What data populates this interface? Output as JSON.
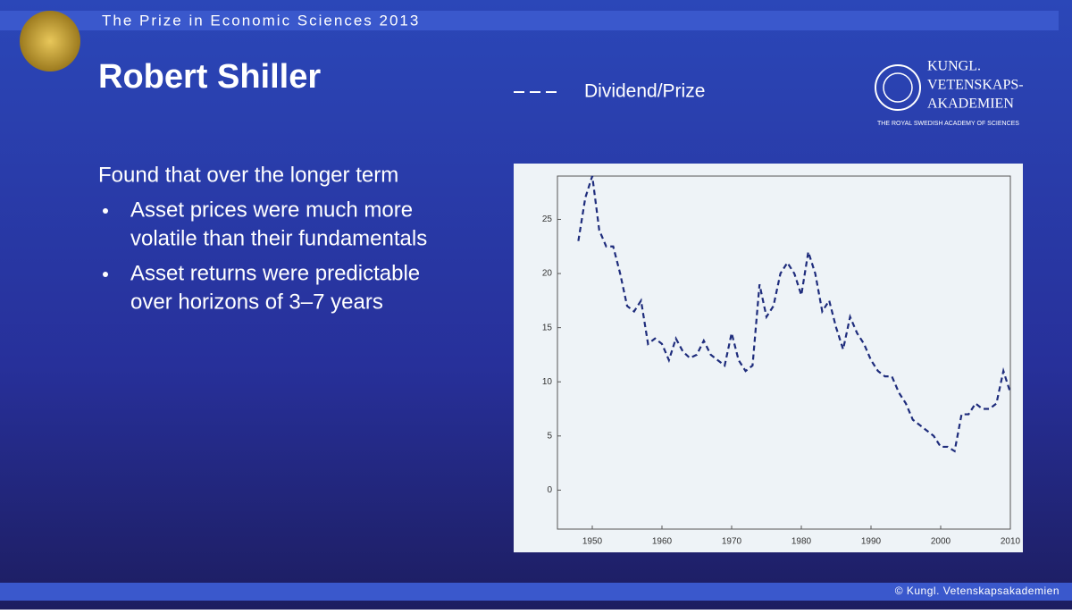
{
  "header": {
    "title": "The Prize in Economic Sciences 2013"
  },
  "slide_title": "Robert Shiller",
  "logo": {
    "lines": [
      "KUNGL.",
      "VETENSKAPS-",
      "AKADEMIEN"
    ],
    "subtitle": "THE ROYAL SWEDISH ACADEMY OF SCIENCES"
  },
  "intro": "Found that over the longer term",
  "bullets": [
    [
      "Asset prices were much more",
      "volatile than their fundamentals"
    ],
    [
      "Asset returns were predictable",
      "over horizons of 3–7 years"
    ]
  ],
  "footer": "© Kungl. Vetenskapsakademien",
  "chart_data": {
    "type": "line",
    "x": [
      1948,
      1949,
      1950,
      1951,
      1952,
      1953,
      1954,
      1955,
      1956,
      1957,
      1958,
      1959,
      1960,
      1961,
      1962,
      1963,
      1964,
      1965,
      1966,
      1967,
      1968,
      1969,
      1970,
      1971,
      1972,
      1973,
      1974,
      1975,
      1976,
      1977,
      1978,
      1979,
      1980,
      1981,
      1982,
      1983,
      1984,
      1985,
      1986,
      1987,
      1988,
      1989,
      1990,
      1991,
      1992,
      1993,
      1994,
      1995,
      1996,
      1997,
      1998,
      1999,
      2000,
      2001,
      2002,
      2003,
      2004,
      2005,
      2006,
      2007,
      2008,
      2009,
      2010
    ],
    "series": [
      {
        "name": "Dividend/Prize",
        "color": "#1e2c7c",
        "values": [
          23,
          27,
          29,
          24,
          22.5,
          22.5,
          20,
          17,
          16.5,
          17.5,
          13.5,
          14,
          13.5,
          12,
          14,
          12.8,
          12.2,
          12.5,
          13.8,
          12.5,
          12,
          11.5,
          14.5,
          12,
          11,
          11.5,
          19,
          16,
          17,
          20,
          21,
          20,
          18,
          22,
          20,
          16.5,
          17.5,
          15,
          13,
          16,
          14.5,
          13.5,
          12,
          11,
          10.5,
          10.5,
          9,
          8,
          6.5,
          6,
          5.5,
          5,
          4,
          4,
          3.6,
          7,
          7,
          8,
          7.5,
          7.5,
          8,
          11,
          9
        ]
      }
    ],
    "xlim": [
      1945,
      2010
    ],
    "ylim": [
      -3.6,
      29
    ],
    "xticks": [
      1950,
      1960,
      1970,
      1980,
      1990,
      2000,
      2010
    ],
    "yticks": [
      0,
      5,
      10,
      15,
      20,
      25
    ],
    "line_style": "dashed"
  }
}
